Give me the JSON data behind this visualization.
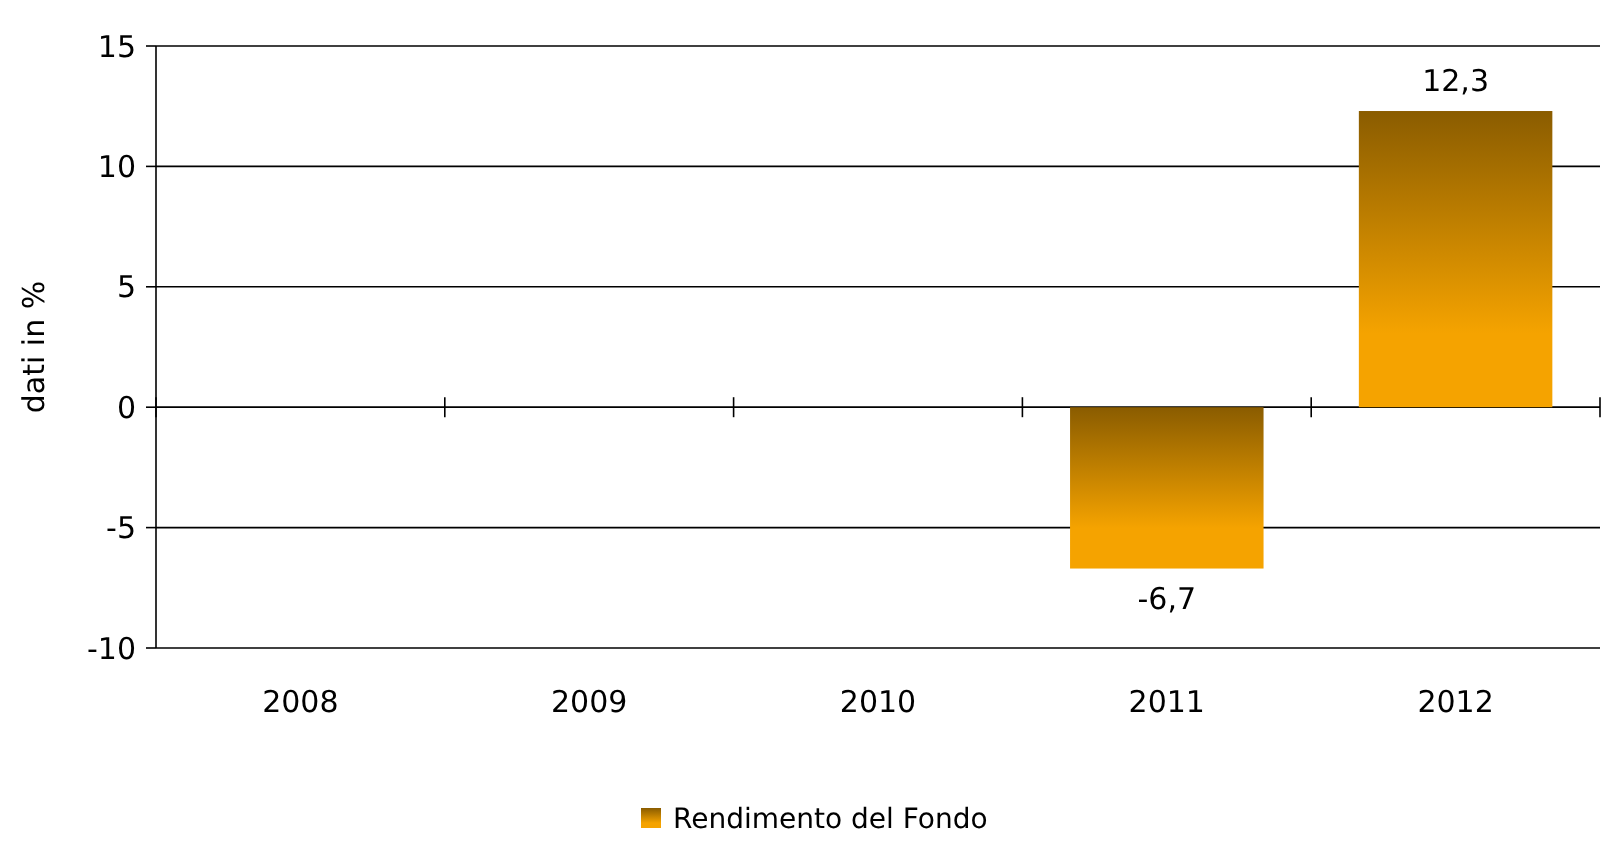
{
  "chart_data": {
    "type": "bar",
    "ylabel": "dati in %",
    "categories": [
      "2008",
      "2009",
      "2010",
      "2011",
      "2012"
    ],
    "series": [
      {
        "name": "Rendimento del Fondo",
        "color": "#f5a300",
        "values": [
          null,
          null,
          null,
          -6.7,
          12.3
        ],
        "value_labels": [
          null,
          null,
          null,
          "-6,7",
          "12,3"
        ]
      }
    ],
    "ylim": [
      -10,
      15
    ],
    "yticks": [
      -10,
      -5,
      0,
      5,
      10,
      15
    ],
    "grid": "y",
    "legend": "bottom"
  }
}
